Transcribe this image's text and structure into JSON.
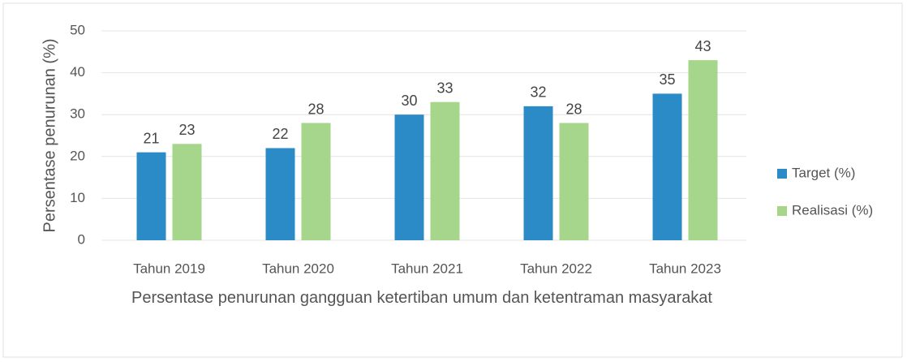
{
  "chart_data": {
    "type": "bar",
    "x_label": "Persentase penurunan  gangguan ketertiban umum dan ketentraman masyarakat",
    "y_label": "Persentase penurunan (%)",
    "categories": [
      "Tahun 2019",
      "Tahun 2020",
      "Tahun 2021",
      "Tahun 2022",
      "Tahun 2023"
    ],
    "series": [
      {
        "name": "Target (%)",
        "color": "#2b8bc6",
        "values": [
          21,
          22,
          30,
          32,
          35
        ]
      },
      {
        "name": "Realisasi (%)",
        "color": "#a5d68c",
        "values": [
          23,
          28,
          33,
          28,
          43
        ]
      }
    ],
    "ylim": [
      0,
      50
    ],
    "yticks": [
      0,
      10,
      20,
      30,
      40,
      50
    ],
    "grid": true,
    "legend": "right"
  }
}
